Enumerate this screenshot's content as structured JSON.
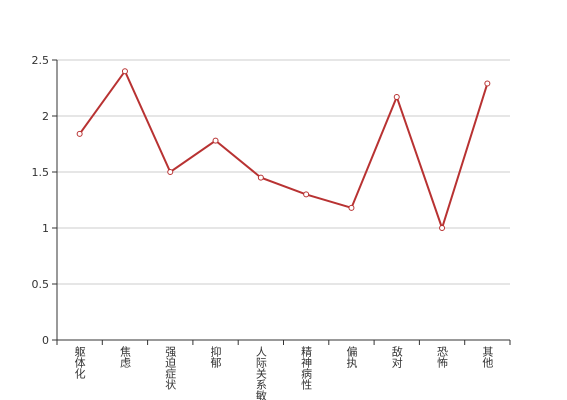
{
  "chart_data": {
    "type": "line",
    "categories": [
      "躯体化",
      "焦虑",
      "强迫症状",
      "抑郁",
      "人际关系敏感",
      "精神病性",
      "偏执",
      "敌对",
      "恐怖",
      "其他"
    ],
    "series": [
      {
        "color": "#b83232",
        "values": [
          1.84,
          2.4,
          1.5,
          1.78,
          1.45,
          1.3,
          1.18,
          2.17,
          1.0,
          2.29
        ]
      }
    ],
    "ylim": [
      0,
      2.5
    ],
    "yticks": [
      0,
      0.5,
      1,
      1.5,
      2,
      2.5
    ],
    "grid": true
  }
}
